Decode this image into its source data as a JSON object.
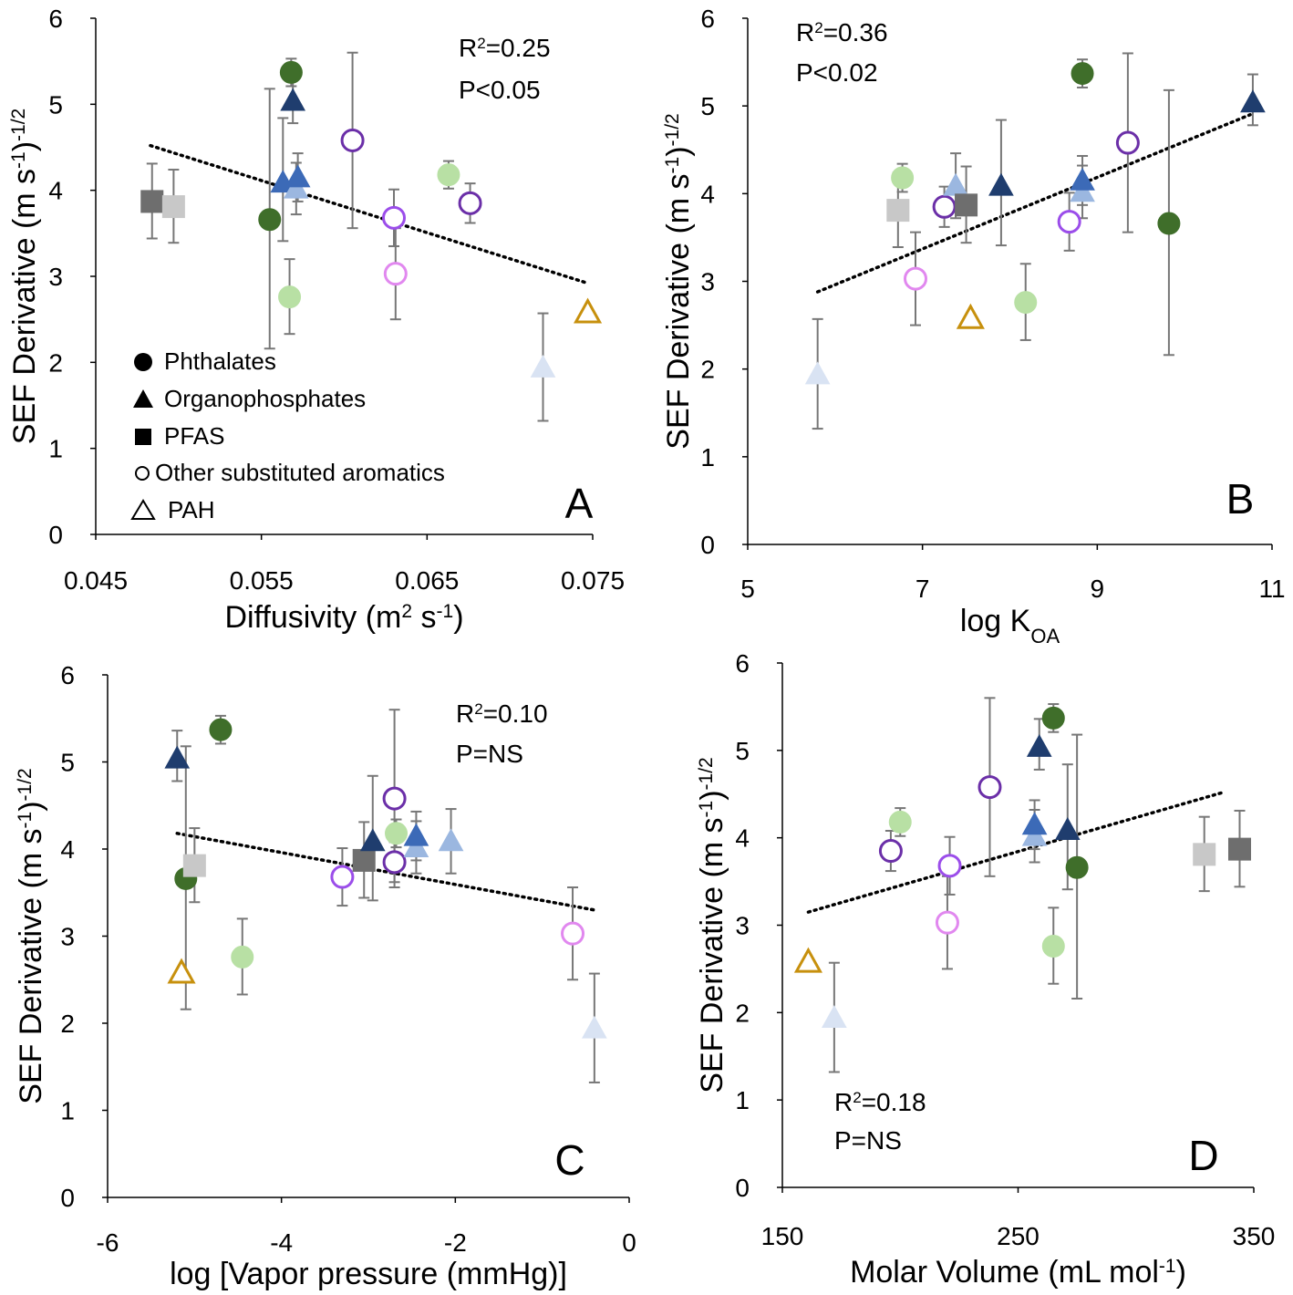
{
  "chart_data": [
    {
      "type": "scatter",
      "panel_letter": "A",
      "xlabel": "Diffusivity (m² s⁻¹)",
      "ylabel": "SEF Derivative (m s⁻¹)⁻¹ᐟ²",
      "xlim": [
        0.045,
        0.075
      ],
      "ylim": [
        0,
        6
      ],
      "x_ticks": [
        "0.045",
        "0.055",
        "0.065",
        "0.075"
      ],
      "y_ticks": [
        "0",
        "1",
        "2",
        "3",
        "4",
        "5",
        "6"
      ],
      "stats": [
        "R²=0.25",
        "P<0.05"
      ],
      "trendline": [
        [
          0.0483,
          4.52
        ],
        [
          0.0747,
          2.92
        ]
      ],
      "legend": [
        {
          "symbol": "circle-filled",
          "label": "Phthalates"
        },
        {
          "symbol": "triangle-filled",
          "label": "Organophosphates"
        },
        {
          "symbol": "square-filled",
          "label": "PFAS"
        },
        {
          "symbol": "circle-open",
          "label": "Other substituted aromatics"
        },
        {
          "symbol": "triangle-open",
          "label": "PAH"
        }
      ],
      "points": [
        {
          "x": 0.0484,
          "y": 3.87,
          "err": [
            0.43,
            0.44
          ],
          "shape": "square",
          "color": "#6e6e6e",
          "fill": true
        },
        {
          "x": 0.0497,
          "y": 3.81,
          "err": [
            0.42,
            0.43
          ],
          "shape": "square",
          "color": "#c8c8c8",
          "fill": true
        },
        {
          "x": 0.0555,
          "y": 3.66,
          "err": [
            1.5,
            1.52
          ],
          "shape": "circle",
          "color": "#3f6e2a",
          "fill": true
        },
        {
          "x": 0.0563,
          "y": 4.09,
          "err": [
            0.68,
            0.75
          ],
          "shape": "triangle",
          "color": "#3c6ab7",
          "fill": true
        },
        {
          "x": 0.0567,
          "y": 2.76,
          "err": [
            0.43,
            0.44
          ],
          "shape": "circle",
          "color": "#b8e0a4",
          "fill": true
        },
        {
          "x": 0.0568,
          "y": 5.37,
          "err": [
            0.16,
            0.16
          ],
          "shape": "circle",
          "color": "#3f6e2a",
          "fill": true
        },
        {
          "x": 0.0569,
          "y": 5.04,
          "err": [
            0.26,
            0.32
          ],
          "shape": "triangle",
          "color": "#1f3d6e",
          "fill": true
        },
        {
          "x": 0.0571,
          "y": 4.02,
          "err": [
            0.3,
            0.3
          ],
          "shape": "triangle",
          "color": "#9bb7e0",
          "fill": true
        },
        {
          "x": 0.0572,
          "y": 4.15,
          "err": [
            0.28,
            0.28
          ],
          "shape": "triangle",
          "color": "#3c6ab7",
          "fill": true
        },
        {
          "x": 0.0605,
          "y": 4.58,
          "err": [
            1.02,
            1.02
          ],
          "shape": "circle",
          "color": "#6b2fa8",
          "fill": false
        },
        {
          "x": 0.063,
          "y": 3.68,
          "err": [
            0.33,
            0.33
          ],
          "shape": "circle",
          "color": "#9b4dea",
          "fill": false
        },
        {
          "x": 0.0631,
          "y": 3.03,
          "err": [
            0.53,
            0.53
          ],
          "shape": "circle",
          "color": "#e188ef",
          "fill": false
        },
        {
          "x": 0.0663,
          "y": 4.18,
          "err": [
            0.16,
            0.16
          ],
          "shape": "circle",
          "color": "#b8e0a4",
          "fill": true
        },
        {
          "x": 0.0676,
          "y": 3.85,
          "err": [
            0.23,
            0.23
          ],
          "shape": "circle",
          "color": "#6b2fa8",
          "fill": false
        },
        {
          "x": 0.072,
          "y": 1.94,
          "err": [
            0.62,
            0.63
          ],
          "shape": "triangle",
          "color": "#d9e3f3",
          "fill": true
        },
        {
          "x": 0.0747,
          "y": 2.58,
          "err": [
            0,
            0
          ],
          "shape": "triangle",
          "color": "#c7900d",
          "fill": false
        }
      ]
    },
    {
      "type": "scatter",
      "panel_letter": "B",
      "xlabel": "log K",
      "xlabel_sub": "OA",
      "ylabel": "SEF Derivative (m s⁻¹)⁻¹ᐟ²",
      "xlim": [
        5,
        11
      ],
      "ylim": [
        0,
        6
      ],
      "x_ticks": [
        "5",
        "7",
        "9",
        "11"
      ],
      "y_ticks": [
        "0",
        "1",
        "2",
        "3",
        "4",
        "5",
        "6"
      ],
      "stats": [
        "R²=0.36",
        "P<0.02"
      ],
      "trendline": [
        [
          5.8,
          2.88
        ],
        [
          10.75,
          4.9
        ]
      ],
      "points": [
        {
          "x": 5.8,
          "y": 1.94,
          "err": [
            0.62,
            0.63
          ],
          "shape": "triangle",
          "color": "#d9e3f3",
          "fill": true
        },
        {
          "x": 6.72,
          "y": 3.81,
          "err": [
            0.42,
            0.43
          ],
          "shape": "square",
          "color": "#c8c8c8",
          "fill": true
        },
        {
          "x": 6.77,
          "y": 4.18,
          "err": [
            0.16,
            0.16
          ],
          "shape": "circle",
          "color": "#b8e0a4",
          "fill": true
        },
        {
          "x": 6.92,
          "y": 3.03,
          "err": [
            0.53,
            0.53
          ],
          "shape": "circle",
          "color": "#e188ef",
          "fill": false
        },
        {
          "x": 7.25,
          "y": 3.85,
          "err": [
            0.23,
            0.23
          ],
          "shape": "circle",
          "color": "#6b2fa8",
          "fill": false
        },
        {
          "x": 7.38,
          "y": 4.09,
          "err": [
            0.37,
            0.37
          ],
          "shape": "triangle",
          "color": "#9bb7e0",
          "fill": true
        },
        {
          "x": 7.5,
          "y": 3.87,
          "err": [
            0.43,
            0.44
          ],
          "shape": "square",
          "color": "#6e6e6e",
          "fill": true
        },
        {
          "x": 7.55,
          "y": 2.58,
          "err": [
            0,
            0
          ],
          "shape": "triangle",
          "color": "#c7900d",
          "fill": false
        },
        {
          "x": 7.9,
          "y": 4.09,
          "err": [
            0.68,
            0.75
          ],
          "shape": "triangle",
          "color": "#1f3d6e",
          "fill": true
        },
        {
          "x": 8.18,
          "y": 2.76,
          "err": [
            0.43,
            0.44
          ],
          "shape": "circle",
          "color": "#b8e0a4",
          "fill": true
        },
        {
          "x": 8.68,
          "y": 3.68,
          "err": [
            0.33,
            0.33
          ],
          "shape": "circle",
          "color": "#9b4dea",
          "fill": false
        },
        {
          "x": 8.83,
          "y": 5.37,
          "err": [
            0.16,
            0.16
          ],
          "shape": "circle",
          "color": "#3f6e2a",
          "fill": true
        },
        {
          "x": 8.83,
          "y": 4.02,
          "err": [
            0.3,
            0.3
          ],
          "shape": "triangle",
          "color": "#9bb7e0",
          "fill": true
        },
        {
          "x": 8.83,
          "y": 4.15,
          "err": [
            0.28,
            0.28
          ],
          "shape": "triangle",
          "color": "#3c6ab7",
          "fill": true
        },
        {
          "x": 9.35,
          "y": 4.58,
          "err": [
            1.02,
            1.02
          ],
          "shape": "circle",
          "color": "#6b2fa8",
          "fill": false
        },
        {
          "x": 9.82,
          "y": 3.66,
          "err": [
            1.5,
            1.52
          ],
          "shape": "circle",
          "color": "#3f6e2a",
          "fill": true
        },
        {
          "x": 10.78,
          "y": 5.04,
          "err": [
            0.26,
            0.32
          ],
          "shape": "triangle",
          "color": "#1f3d6e",
          "fill": true
        }
      ]
    },
    {
      "type": "scatter",
      "panel_letter": "C",
      "xlabel": "log [Vapor pressure (mmHg)]",
      "ylabel": "SEF Derivative (m s⁻¹)⁻¹ᐟ²",
      "xlim": [
        -6,
        0
      ],
      "ylim": [
        0,
        6
      ],
      "x_ticks": [
        "-6",
        "-4",
        "-2",
        "0"
      ],
      "y_ticks": [
        "0",
        "1",
        "2",
        "3",
        "4",
        "5",
        "6"
      ],
      "stats": [
        "R²=0.10",
        "P=NS"
      ],
      "trendline": [
        [
          -5.2,
          4.18
        ],
        [
          -0.4,
          3.3
        ]
      ],
      "points": [
        {
          "x": -5.2,
          "y": 5.04,
          "err": [
            0.26,
            0.32
          ],
          "shape": "triangle",
          "color": "#1f3d6e",
          "fill": true
        },
        {
          "x": -5.1,
          "y": 3.66,
          "err": [
            1.5,
            1.52
          ],
          "shape": "circle",
          "color": "#3f6e2a",
          "fill": true
        },
        {
          "x": -5.0,
          "y": 3.81,
          "err": [
            0.42,
            0.43
          ],
          "shape": "square",
          "color": "#c8c8c8",
          "fill": true
        },
        {
          "x": -5.15,
          "y": 2.58,
          "err": [
            0,
            0
          ],
          "shape": "triangle",
          "color": "#c7900d",
          "fill": false
        },
        {
          "x": -4.7,
          "y": 5.37,
          "err": [
            0.16,
            0.16
          ],
          "shape": "circle",
          "color": "#3f6e2a",
          "fill": true
        },
        {
          "x": -4.45,
          "y": 2.76,
          "err": [
            0.43,
            0.44
          ],
          "shape": "circle",
          "color": "#b8e0a4",
          "fill": true
        },
        {
          "x": -3.3,
          "y": 3.68,
          "err": [
            0.33,
            0.33
          ],
          "shape": "circle",
          "color": "#9b4dea",
          "fill": false
        },
        {
          "x": -3.05,
          "y": 3.87,
          "err": [
            0.43,
            0.44
          ],
          "shape": "square",
          "color": "#6e6e6e",
          "fill": true
        },
        {
          "x": -2.95,
          "y": 4.09,
          "err": [
            0.68,
            0.75
          ],
          "shape": "triangle",
          "color": "#1f3d6e",
          "fill": true
        },
        {
          "x": -2.7,
          "y": 4.58,
          "err": [
            1.02,
            1.02
          ],
          "shape": "circle",
          "color": "#6b2fa8",
          "fill": false
        },
        {
          "x": -2.68,
          "y": 4.18,
          "err": [
            0.16,
            0.16
          ],
          "shape": "circle",
          "color": "#b8e0a4",
          "fill": true
        },
        {
          "x": -2.7,
          "y": 3.85,
          "err": [
            0.23,
            0.23
          ],
          "shape": "circle",
          "color": "#6b2fa8",
          "fill": false
        },
        {
          "x": -2.45,
          "y": 4.02,
          "err": [
            0.3,
            0.3
          ],
          "shape": "triangle",
          "color": "#9bb7e0",
          "fill": true
        },
        {
          "x": -2.45,
          "y": 4.15,
          "err": [
            0.28,
            0.28
          ],
          "shape": "triangle",
          "color": "#3c6ab7",
          "fill": true
        },
        {
          "x": -2.05,
          "y": 4.09,
          "err": [
            0.37,
            0.37
          ],
          "shape": "triangle",
          "color": "#9bb7e0",
          "fill": true
        },
        {
          "x": -0.65,
          "y": 3.03,
          "err": [
            0.53,
            0.53
          ],
          "shape": "circle",
          "color": "#e188ef",
          "fill": false
        },
        {
          "x": -0.4,
          "y": 1.94,
          "err": [
            0.62,
            0.63
          ],
          "shape": "triangle",
          "color": "#d9e3f3",
          "fill": true
        }
      ]
    },
    {
      "type": "scatter",
      "panel_letter": "D",
      "xlabel": "Molar Volume (mL mol⁻¹)",
      "ylabel": "SEF Derivative (m s⁻¹)⁻¹ᐟ²",
      "xlim": [
        150,
        350
      ],
      "ylim": [
        0,
        6
      ],
      "x_ticks": [
        "150",
        "250",
        "350"
      ],
      "y_ticks": [
        "0",
        "1",
        "2",
        "3",
        "4",
        "5",
        "6"
      ],
      "stats": [
        "R²=0.18",
        "P=NS"
      ],
      "trendline": [
        [
          161,
          3.15
        ],
        [
          337,
          4.52
        ]
      ],
      "points": [
        {
          "x": 161,
          "y": 2.58,
          "err": [
            0,
            0
          ],
          "shape": "triangle",
          "color": "#c7900d",
          "fill": false
        },
        {
          "x": 172,
          "y": 1.94,
          "err": [
            0.62,
            0.63
          ],
          "shape": "triangle",
          "color": "#d9e3f3",
          "fill": true
        },
        {
          "x": 196,
          "y": 3.85,
          "err": [
            0.23,
            0.23
          ],
          "shape": "circle",
          "color": "#6b2fa8",
          "fill": false
        },
        {
          "x": 200,
          "y": 4.18,
          "err": [
            0.16,
            0.16
          ],
          "shape": "circle",
          "color": "#b8e0a4",
          "fill": true
        },
        {
          "x": 221,
          "y": 3.68,
          "err": [
            0.33,
            0.33
          ],
          "shape": "circle",
          "color": "#9b4dea",
          "fill": false
        },
        {
          "x": 220,
          "y": 3.03,
          "err": [
            0.53,
            0.53
          ],
          "shape": "circle",
          "color": "#e188ef",
          "fill": false
        },
        {
          "x": 238,
          "y": 4.58,
          "err": [
            1.02,
            1.02
          ],
          "shape": "circle",
          "color": "#6b2fa8",
          "fill": false
        },
        {
          "x": 257,
          "y": 4.02,
          "err": [
            0.3,
            0.3
          ],
          "shape": "triangle",
          "color": "#9bb7e0",
          "fill": true
        },
        {
          "x": 257,
          "y": 4.15,
          "err": [
            0.28,
            0.28
          ],
          "shape": "triangle",
          "color": "#3c6ab7",
          "fill": true
        },
        {
          "x": 259,
          "y": 5.04,
          "err": [
            0.26,
            0.32
          ],
          "shape": "triangle",
          "color": "#1f3d6e",
          "fill": true
        },
        {
          "x": 265,
          "y": 5.37,
          "err": [
            0.16,
            0.16
          ],
          "shape": "circle",
          "color": "#3f6e2a",
          "fill": true
        },
        {
          "x": 265,
          "y": 2.76,
          "err": [
            0.43,
            0.44
          ],
          "shape": "circle",
          "color": "#b8e0a4",
          "fill": true
        },
        {
          "x": 271,
          "y": 4.09,
          "err": [
            0.68,
            0.75
          ],
          "shape": "triangle",
          "color": "#1f3d6e",
          "fill": true
        },
        {
          "x": 275,
          "y": 3.66,
          "err": [
            1.5,
            1.52
          ],
          "shape": "circle",
          "color": "#3f6e2a",
          "fill": true
        },
        {
          "x": 329,
          "y": 3.81,
          "err": [
            0.42,
            0.43
          ],
          "shape": "square",
          "color": "#c8c8c8",
          "fill": true
        },
        {
          "x": 344,
          "y": 3.87,
          "err": [
            0.43,
            0.44
          ],
          "shape": "square",
          "color": "#6e6e6e",
          "fill": true
        }
      ]
    }
  ]
}
